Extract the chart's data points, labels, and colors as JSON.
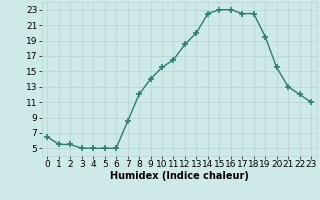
{
  "title": "",
  "xlabel": "Humidex (Indice chaleur)",
  "x": [
    0,
    1,
    2,
    3,
    4,
    5,
    6,
    7,
    8,
    9,
    10,
    11,
    12,
    13,
    14,
    15,
    16,
    17,
    18,
    19,
    20,
    21,
    22,
    23
  ],
  "y": [
    6.5,
    5.5,
    5.5,
    5.0,
    5.0,
    5.0,
    5.0,
    8.5,
    12.0,
    14.0,
    15.5,
    16.5,
    18.5,
    20.0,
    22.5,
    23.0,
    23.0,
    22.5,
    22.5,
    19.5,
    15.5,
    13.0,
    12.0,
    11.0
  ],
  "line_color": "#2e7d6e",
  "marker": "+",
  "marker_size": 4,
  "bg_color": "#ceeae8",
  "grid_color": "#b8d4d2",
  "ylim": [
    4,
    24
  ],
  "xlim": [
    -0.5,
    23.5
  ],
  "yticks": [
    5,
    7,
    9,
    11,
    13,
    15,
    17,
    19,
    21,
    23
  ],
  "xticks": [
    0,
    1,
    2,
    3,
    4,
    5,
    6,
    7,
    8,
    9,
    10,
    11,
    12,
    13,
    14,
    15,
    16,
    17,
    18,
    19,
    20,
    21,
    22,
    23
  ],
  "xlabel_fontsize": 7,
  "tick_fontsize": 6.5,
  "linewidth": 1.0,
  "marker_linewidth": 1.2
}
